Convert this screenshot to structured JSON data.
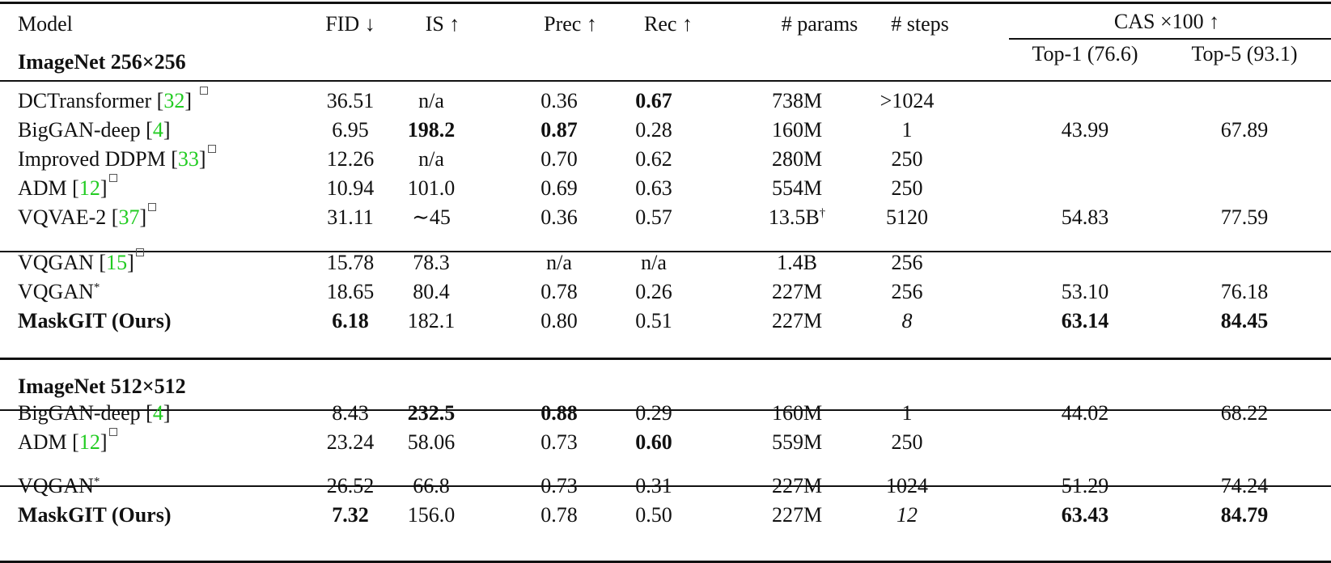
{
  "colors": {
    "cite": "#22cc22",
    "rule": "#111111"
  },
  "header": {
    "model": "Model",
    "fid": "FID ↓",
    "is": "IS ↑",
    "prec": "Prec ↑",
    "rec": "Rec ↑",
    "params": "# params",
    "steps": "# steps",
    "cas": "CAS ×100 ↑",
    "top1": "Top-1 (76.6)",
    "top5": "Top-5 (93.1)"
  },
  "sections": [
    {
      "title": "ImageNet 256×256",
      "groups": [
        [
          {
            "name": "DCTransformer ",
            "cite": "32",
            "mark": "box",
            "fid": "36.51",
            "is": "n/a",
            "prec": "0.36",
            "rec": "0.67",
            "params": "738M",
            "steps": ">1024",
            "top1": "",
            "top5": "",
            "bold": [
              "rec"
            ]
          },
          {
            "name": "BigGAN-deep ",
            "cite": "4",
            "mark": "",
            "fid": "6.95",
            "is": "198.2",
            "prec": "0.87",
            "rec": "0.28",
            "params": "160M",
            "steps": "1",
            "top1": "43.99",
            "top5": "67.89",
            "bold": [
              "is",
              "prec"
            ]
          },
          {
            "name": "Improved DDPM ",
            "cite": "33",
            "mark": "box",
            "fid": "12.26",
            "is": "n/a",
            "prec": "0.70",
            "rec": "0.62",
            "params": "280M",
            "steps": "250",
            "top1": "",
            "top5": "",
            "bold": []
          },
          {
            "name": "ADM ",
            "cite": "12",
            "mark": "box",
            "fid": "10.94",
            "is": "101.0",
            "prec": "0.69",
            "rec": "0.63",
            "params": "554M",
            "steps": "250",
            "top1": "",
            "top5": "",
            "bold": []
          },
          {
            "name": "VQVAE-2 ",
            "cite": "37",
            "mark": "box",
            "fid": "31.11",
            "is": "∼45",
            "prec": "0.36",
            "rec": "0.57",
            "params": "13.5B",
            "params_sup": "†",
            "steps": "5120",
            "top1": "54.83",
            "top5": "77.59",
            "bold": []
          }
        ],
        [
          {
            "name": "VQGAN ",
            "cite": "15",
            "mark": "box",
            "fid": "15.78",
            "is": "78.3",
            "prec": "n/a",
            "rec": "n/a",
            "params": "1.4B",
            "steps": "256",
            "top1": "",
            "top5": "",
            "bold": []
          },
          {
            "name": "VQGAN",
            "cite": "",
            "mark": "star",
            "fid": "18.65",
            "is": "80.4",
            "prec": "0.78",
            "rec": "0.26",
            "params": "227M",
            "steps": "256",
            "top1": "53.10",
            "top5": "76.18",
            "bold": []
          },
          {
            "name": "MaskGIT (Ours)",
            "cite": "",
            "mark": "",
            "fid": "6.18",
            "is": "182.1",
            "prec": "0.80",
            "rec": "0.51",
            "params": "227M",
            "steps": "8",
            "top1": "63.14",
            "top5": "84.45",
            "bold": [
              "name",
              "fid",
              "top1",
              "top5"
            ],
            "italic": [
              "steps"
            ]
          }
        ]
      ]
    },
    {
      "title": "ImageNet 512×512",
      "groups": [
        [
          {
            "name": "BigGAN-deep ",
            "cite": "4",
            "mark": "",
            "fid": "8.43",
            "is": "232.5",
            "prec": "0.88",
            "rec": "0.29",
            "params": "160M",
            "steps": "1",
            "top1": "44.02",
            "top5": "68.22",
            "bold": [
              "is",
              "prec"
            ]
          },
          {
            "name": "ADM ",
            "cite": "12",
            "mark": "box",
            "fid": "23.24",
            "is": "58.06",
            "prec": "0.73",
            "rec": "0.60",
            "params": "559M",
            "steps": "250",
            "top1": "",
            "top5": "",
            "bold": [
              "rec"
            ]
          }
        ],
        [
          {
            "name": "VQGAN",
            "cite": "",
            "mark": "star",
            "fid": "26.52",
            "is": "66.8",
            "prec": "0.73",
            "rec": "0.31",
            "params": "227M",
            "steps": "1024",
            "top1": "51.29",
            "top5": "74.24",
            "bold": []
          },
          {
            "name": "MaskGIT (Ours)",
            "cite": "",
            "mark": "",
            "fid": "7.32",
            "is": "156.0",
            "prec": "0.78",
            "rec": "0.50",
            "params": "227M",
            "steps": "12",
            "top1": "63.43",
            "top5": "84.79",
            "bold": [
              "name",
              "fid",
              "top1",
              "top5"
            ],
            "italic": [
              "steps"
            ]
          }
        ]
      ]
    }
  ]
}
